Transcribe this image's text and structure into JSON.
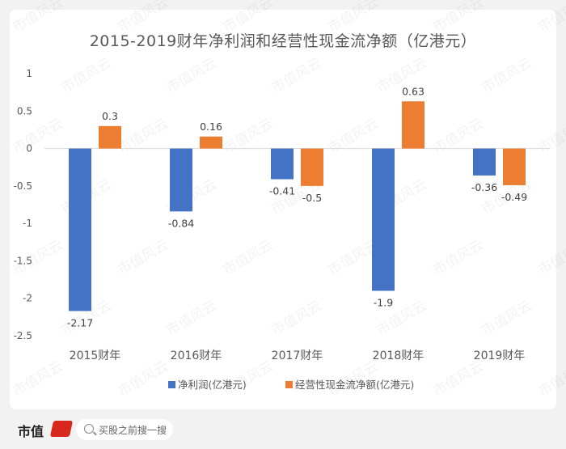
{
  "chart_data": {
    "type": "bar",
    "title": "2015-2019财年净利润和经营性现金流净额（亿港元）",
    "categories": [
      "2015财年",
      "2016财年",
      "2017财年",
      "2018财年",
      "2019财年"
    ],
    "series": [
      {
        "name": "净利润(亿港元)",
        "values": [
          -2.17,
          -0.84,
          -0.41,
          -1.9,
          -0.36
        ],
        "labels": [
          "-2.17",
          "-0.84",
          "-0.41",
          "-1.9",
          "-0.36"
        ],
        "color": "#4472c4"
      },
      {
        "name": "经营性现金流净额(亿港元)",
        "values": [
          0.3,
          0.16,
          -0.5,
          0.63,
          -0.49
        ],
        "labels": [
          "0.3",
          "0.16",
          "-0.5",
          "0.63",
          "-0.49"
        ],
        "color": "#ed7d31"
      }
    ],
    "ylim": [
      -2.5,
      1
    ],
    "yticks": [
      "1",
      "0.5",
      "0",
      "-0.5",
      "-1",
      "-1.5",
      "-2",
      "-2.5"
    ],
    "grid": false,
    "legend": "bottom"
  },
  "watermark": "市值风云",
  "footer": {
    "brand": "市值",
    "search_placeholder": "买股之前搜一搜"
  }
}
